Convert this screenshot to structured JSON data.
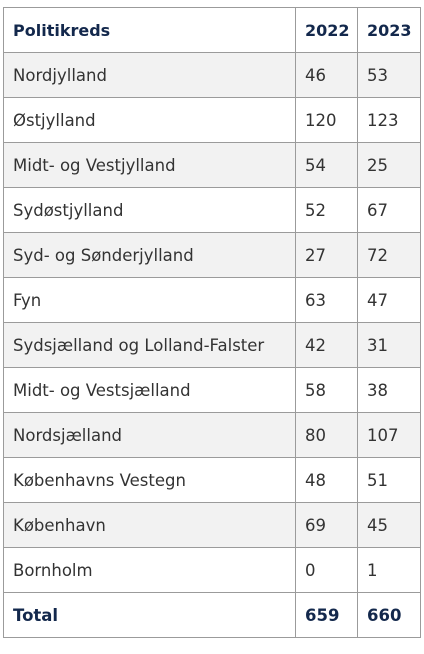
{
  "table": {
    "headers": [
      "Politikreds",
      "2022",
      "2023"
    ],
    "rows": [
      {
        "name": "Nordjylland",
        "y2022": "46",
        "y2023": "53"
      },
      {
        "name": "Østjylland",
        "y2022": "120",
        "y2023": "123"
      },
      {
        "name": "Midt- og Vestjylland",
        "y2022": "54",
        "y2023": "25"
      },
      {
        "name": "Sydøstjylland",
        "y2022": "52",
        "y2023": "67"
      },
      {
        "name": "Syd- og Sønderjylland",
        "y2022": "27",
        "y2023": "72"
      },
      {
        "name": "Fyn",
        "y2022": "63",
        "y2023": "47"
      },
      {
        "name": "Sydsjælland og Lolland-Falster",
        "y2022": "42",
        "y2023": "31"
      },
      {
        "name": "Midt- og Vestsjælland",
        "y2022": "58",
        "y2023": "38"
      },
      {
        "name": "Nordsjælland",
        "y2022": "80",
        "y2023": "107"
      },
      {
        "name": "Københavns Vestegn",
        "y2022": "48",
        "y2023": "51"
      },
      {
        "name": "København",
        "y2022": "69",
        "y2023": "45"
      },
      {
        "name": "Bornholm",
        "y2022": "0",
        "y2023": "1"
      }
    ],
    "total": {
      "name": "Total",
      "y2022": "659",
      "y2023": "660"
    }
  },
  "colors": {
    "header_text": "#13284c",
    "striped_row": "#f2f2f2",
    "border": "#9b9b9b"
  }
}
